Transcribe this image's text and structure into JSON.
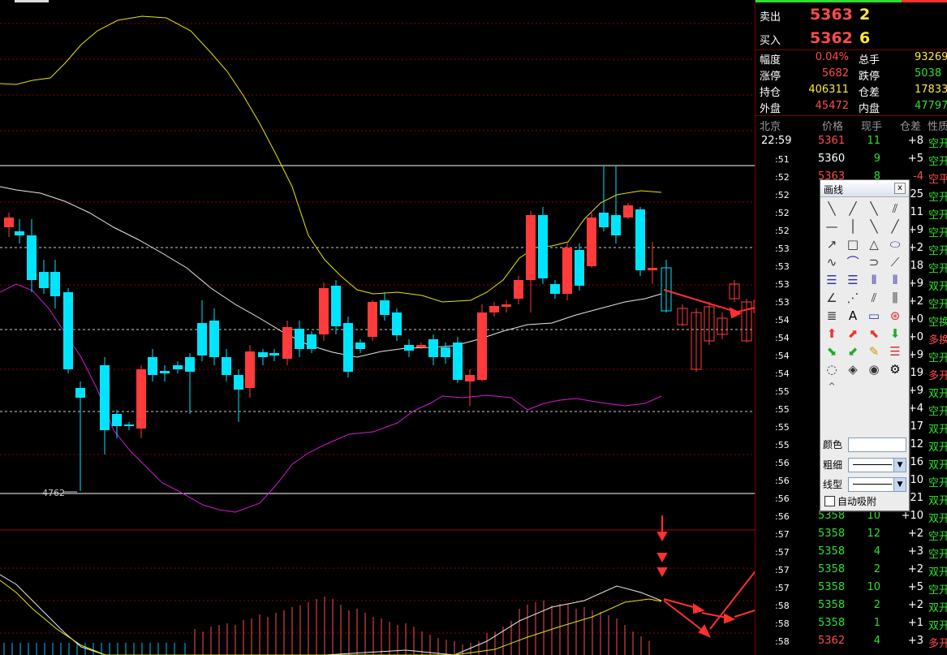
{
  "chart": {
    "low_marker": "4762",
    "colors": {
      "up": "#ff3b3b",
      "down": "#00e5ff",
      "ma_white": "#e8e8e8",
      "boll_upper": "#e6e600",
      "boll_lower": "#d21ad2",
      "grid": "#8b0000",
      "arrow": "#ff3030"
    }
  },
  "quote": {
    "sell": {
      "label": "卖出",
      "price": "5363",
      "vol": "2"
    },
    "buy": {
      "label": "买入",
      "price": "5362",
      "vol": "6"
    },
    "stats": [
      {
        "k1": "幅度",
        "v1": "0.04%",
        "k2": "总手",
        "v2": "93269"
      },
      {
        "k1": "涨停",
        "v1": "5682",
        "k2": "跌停",
        "v2": "5038"
      },
      {
        "k1": "持仓",
        "v1": "406311",
        "k2": "仓差",
        "v2": "17833"
      },
      {
        "k1": "外盘",
        "v1": "45472",
        "k2": "内盘",
        "v2": "47797"
      }
    ]
  },
  "ticks_header": {
    "time": "北京",
    "price": "价格",
    "vol": "现手",
    "oi": "仓差",
    "nature": "性质"
  },
  "ticks": [
    {
      "time": "22:59",
      "price": "5361",
      "vol": "11",
      "oi": "+8",
      "nature": "空开"
    },
    {
      "time": ":51",
      "price": "5360",
      "vol": "9",
      "oi": "+5",
      "nature": "空开"
    },
    {
      "time": ":52",
      "price": "5363",
      "vol": "8",
      "oi": "-4",
      "nature": "空平"
    },
    {
      "time": ":52",
      "price": "",
      "vol": "",
      "oi": "25",
      "nature": "空开"
    },
    {
      "time": ":52",
      "price": "",
      "vol": "",
      "oi": "11",
      "nature": "空开"
    },
    {
      "time": ":52",
      "price": "",
      "vol": "",
      "oi": "+9",
      "nature": "空开"
    },
    {
      "time": ":53",
      "price": "",
      "vol": "",
      "oi": "+2",
      "nature": "空开"
    },
    {
      "time": ":53",
      "price": "",
      "vol": "",
      "oi": "18",
      "nature": "空开"
    },
    {
      "time": ":53",
      "price": "",
      "vol": "",
      "oi": "+9",
      "nature": "双开"
    },
    {
      "time": ":53",
      "price": "",
      "vol": "",
      "oi": "+2",
      "nature": "空开"
    },
    {
      "time": ":54",
      "price": "",
      "vol": "",
      "oi": "+0",
      "nature": "空换"
    },
    {
      "time": ":54",
      "price": "",
      "vol": "",
      "oi": "+0",
      "nature": "多换"
    },
    {
      "time": ":54",
      "price": "",
      "vol": "",
      "oi": "+9",
      "nature": "空开"
    },
    {
      "time": ":54",
      "price": "",
      "vol": "",
      "oi": "19",
      "nature": "多开"
    },
    {
      "time": ":55",
      "price": "",
      "vol": "",
      "oi": "+9",
      "nature": "双开"
    },
    {
      "time": ":55",
      "price": "",
      "vol": "",
      "oi": "+4",
      "nature": "空开"
    },
    {
      "time": ":55",
      "price": "",
      "vol": "",
      "oi": "17",
      "nature": "双开"
    },
    {
      "time": ":55",
      "price": "",
      "vol": "",
      "oi": "12",
      "nature": "双开"
    },
    {
      "time": ":56",
      "price": "",
      "vol": "",
      "oi": "16",
      "nature": "双开"
    },
    {
      "time": ":56",
      "price": "",
      "vol": "",
      "oi": "10",
      "nature": "空开"
    },
    {
      "time": ":56",
      "price": "",
      "vol": "",
      "oi": "21",
      "nature": "双开"
    },
    {
      "time": ":56",
      "price": "5358",
      "vol": "10",
      "oi": "+10",
      "nature": "双开"
    },
    {
      "time": ":57",
      "price": "5358",
      "vol": "12",
      "oi": "+2",
      "nature": "空开"
    },
    {
      "time": ":57",
      "price": "5358",
      "vol": "4",
      "oi": "+3",
      "nature": "空开"
    },
    {
      "time": ":57",
      "price": "5358",
      "vol": "2",
      "oi": "+2",
      "nature": "双开"
    },
    {
      "time": ":57",
      "price": "5358",
      "vol": "10",
      "oi": "+5",
      "nature": "空开"
    },
    {
      "time": ":58",
      "price": "5358",
      "vol": "2",
      "oi": "+2",
      "nature": "双开"
    },
    {
      "time": ":58",
      "price": "5358",
      "vol": "1",
      "oi": "+1",
      "nature": "双开"
    },
    {
      "time": ":58",
      "price": "5362",
      "vol": "4",
      "oi": "+3",
      "nature": "多开"
    }
  ],
  "palette": {
    "title": "画线",
    "close": "x",
    "color_label": "颜色",
    "width_label": "粗细",
    "style_label": "线型",
    "auto_snap_label": "自动吸附",
    "text_tool": "A",
    "tools": [
      "segment-line",
      "ray-line",
      "down-line",
      "parallel-line",
      "horizontal-line",
      "vertical-segment",
      "diagonal-line",
      "slash-line",
      "arrow-line",
      "rectangle",
      "triangle",
      "ellipse",
      "wave",
      "arc",
      "half-circle",
      "fib-fan",
      "fib-retrace",
      "golden-section",
      "period-line",
      "fib-time",
      "angle-line",
      "gann-fan",
      "speed-line",
      "fib-channel",
      "linear-regression",
      "text",
      "ruler",
      "stamp",
      "up-arrow-red",
      "up-right-arrow-red",
      "down-left-arrow-red",
      "down-arrow-green",
      "down-right-arrow-green",
      "up-left-arrow-green",
      "eraser",
      "list",
      "hide",
      "show-hide",
      "eye",
      "settings",
      "collapse"
    ]
  }
}
